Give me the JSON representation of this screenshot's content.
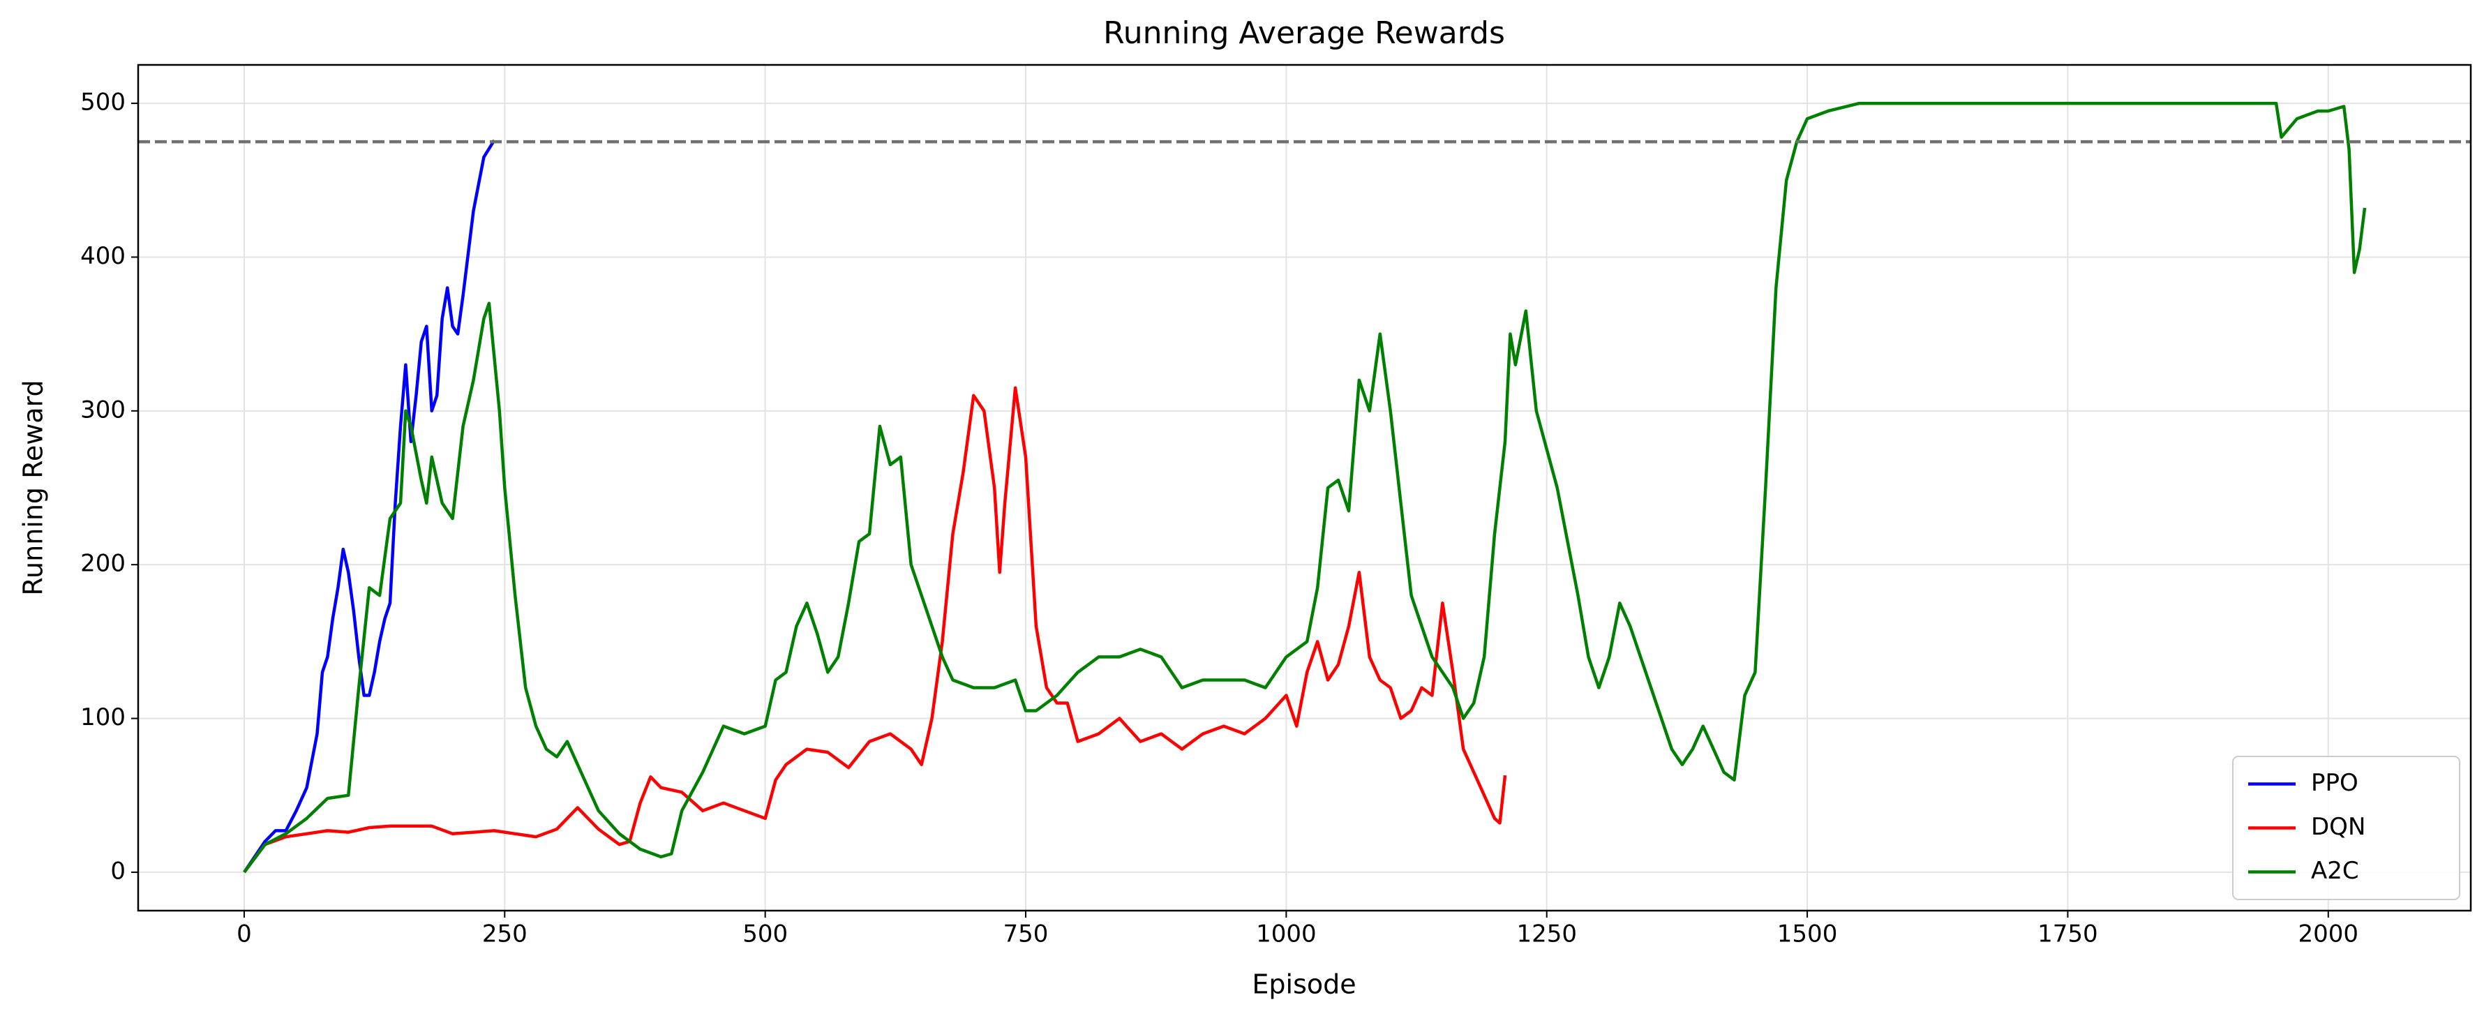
{
  "chart_data": {
    "type": "line",
    "title": "Running Average Rewards",
    "x_label": "Episode",
    "y_label": "Running Reward",
    "xlim": [
      -101.75,
      2136.75
    ],
    "ylim": [
      -25,
      525
    ],
    "xticks": [
      0,
      250,
      500,
      750,
      1000,
      1250,
      1500,
      1750,
      2000
    ],
    "yticks": [
      0,
      100,
      200,
      300,
      400,
      500
    ],
    "grid": true,
    "legend_position": "lower right",
    "reference_line": {
      "value": 475,
      "color": "#707070",
      "dashed": true
    },
    "series": [
      {
        "name": "PPO",
        "color": "#0000ff",
        "x": [
          0,
          10,
          20,
          30,
          40,
          50,
          60,
          70,
          75,
          80,
          85,
          90,
          95,
          100,
          105,
          110,
          115,
          120,
          125,
          130,
          135,
          140,
          145,
          150,
          155,
          160,
          165,
          170,
          175,
          180,
          185,
          190,
          195,
          200,
          205,
          210,
          220,
          230,
          240
        ],
        "values": [
          0,
          10,
          20,
          27,
          27,
          40,
          55,
          90,
          130,
          140,
          165,
          185,
          210,
          195,
          170,
          140,
          115,
          115,
          130,
          150,
          165,
          175,
          240,
          290,
          330,
          280,
          310,
          345,
          355,
          300,
          310,
          360,
          380,
          355,
          350,
          375,
          430,
          465,
          476
        ]
      },
      {
        "name": "DQN",
        "color": "#ff0000",
        "x": [
          0,
          20,
          40,
          60,
          80,
          100,
          120,
          140,
          160,
          180,
          200,
          220,
          240,
          260,
          280,
          300,
          320,
          340,
          360,
          370,
          380,
          390,
          400,
          420,
          440,
          460,
          480,
          500,
          510,
          520,
          540,
          560,
          580,
          600,
          620,
          640,
          650,
          660,
          670,
          680,
          690,
          700,
          710,
          720,
          725,
          730,
          740,
          750,
          760,
          770,
          780,
          790,
          800,
          820,
          840,
          860,
          880,
          900,
          920,
          940,
          960,
          980,
          1000,
          1010,
          1020,
          1030,
          1040,
          1050,
          1060,
          1070,
          1080,
          1090,
          1100,
          1110,
          1120,
          1130,
          1140,
          1150,
          1160,
          1170,
          1180,
          1190,
          1200,
          1205,
          1210
        ],
        "values": [
          0,
          18,
          23,
          25,
          27,
          26,
          29,
          30,
          30,
          30,
          25,
          26,
          27,
          25,
          23,
          28,
          42,
          28,
          18,
          20,
          45,
          62,
          55,
          52,
          40,
          45,
          40,
          35,
          60,
          70,
          80,
          78,
          68,
          85,
          90,
          80,
          70,
          100,
          150,
          220,
          260,
          310,
          300,
          250,
          195,
          240,
          315,
          270,
          160,
          120,
          110,
          110,
          85,
          90,
          100,
          85,
          90,
          80,
          90,
          95,
          90,
          100,
          115,
          95,
          130,
          150,
          125,
          135,
          160,
          195,
          140,
          125,
          120,
          100,
          105,
          120,
          115,
          175,
          130,
          80,
          65,
          50,
          35,
          32,
          63
        ]
      },
      {
        "name": "A2C",
        "color": "#008000",
        "x": [
          0,
          20,
          40,
          60,
          80,
          100,
          110,
          120,
          130,
          140,
          150,
          155,
          160,
          170,
          175,
          180,
          190,
          200,
          210,
          220,
          230,
          235,
          245,
          250,
          260,
          270,
          280,
          290,
          300,
          310,
          320,
          340,
          360,
          380,
          400,
          410,
          420,
          440,
          460,
          480,
          500,
          510,
          520,
          530,
          540,
          550,
          560,
          570,
          580,
          590,
          600,
          610,
          620,
          630,
          640,
          650,
          660,
          670,
          680,
          700,
          720,
          740,
          750,
          760,
          780,
          800,
          820,
          840,
          860,
          880,
          900,
          920,
          940,
          960,
          980,
          1000,
          1020,
          1030,
          1040,
          1050,
          1060,
          1070,
          1080,
          1090,
          1100,
          1110,
          1120,
          1140,
          1160,
          1170,
          1180,
          1190,
          1200,
          1210,
          1215,
          1220,
          1230,
          1240,
          1260,
          1280,
          1290,
          1300,
          1310,
          1320,
          1330,
          1350,
          1370,
          1380,
          1390,
          1400,
          1410,
          1420,
          1430,
          1440,
          1450,
          1460,
          1470,
          1480,
          1490,
          1500,
          1520,
          1550,
          1600,
          1700,
          1800,
          1900,
          1950,
          1955,
          1970,
          1990,
          2000,
          2015,
          2020,
          2025,
          2030,
          2035
        ],
        "values": [
          0,
          18,
          25,
          35,
          48,
          50,
          120,
          185,
          180,
          230,
          240,
          300,
          290,
          255,
          240,
          270,
          240,
          230,
          290,
          320,
          360,
          370,
          300,
          250,
          180,
          120,
          95,
          80,
          75,
          85,
          70,
          40,
          25,
          15,
          10,
          12,
          40,
          65,
          95,
          90,
          95,
          125,
          130,
          160,
          175,
          155,
          130,
          140,
          175,
          215,
          220,
          290,
          265,
          270,
          200,
          180,
          160,
          140,
          125,
          120,
          120,
          125,
          105,
          105,
          115,
          130,
          140,
          140,
          145,
          140,
          120,
          125,
          125,
          125,
          120,
          140,
          150,
          185,
          250,
          255,
          235,
          320,
          300,
          350,
          300,
          240,
          180,
          140,
          120,
          100,
          110,
          140,
          220,
          280,
          350,
          330,
          365,
          300,
          250,
          180,
          140,
          120,
          140,
          175,
          160,
          120,
          80,
          70,
          80,
          95,
          80,
          65,
          60,
          115,
          130,
          250,
          380,
          450,
          475,
          490,
          495,
          500,
          500,
          500,
          500,
          500,
          500,
          478,
          490,
          495,
          495,
          498,
          470,
          390,
          405,
          432
        ]
      }
    ]
  }
}
